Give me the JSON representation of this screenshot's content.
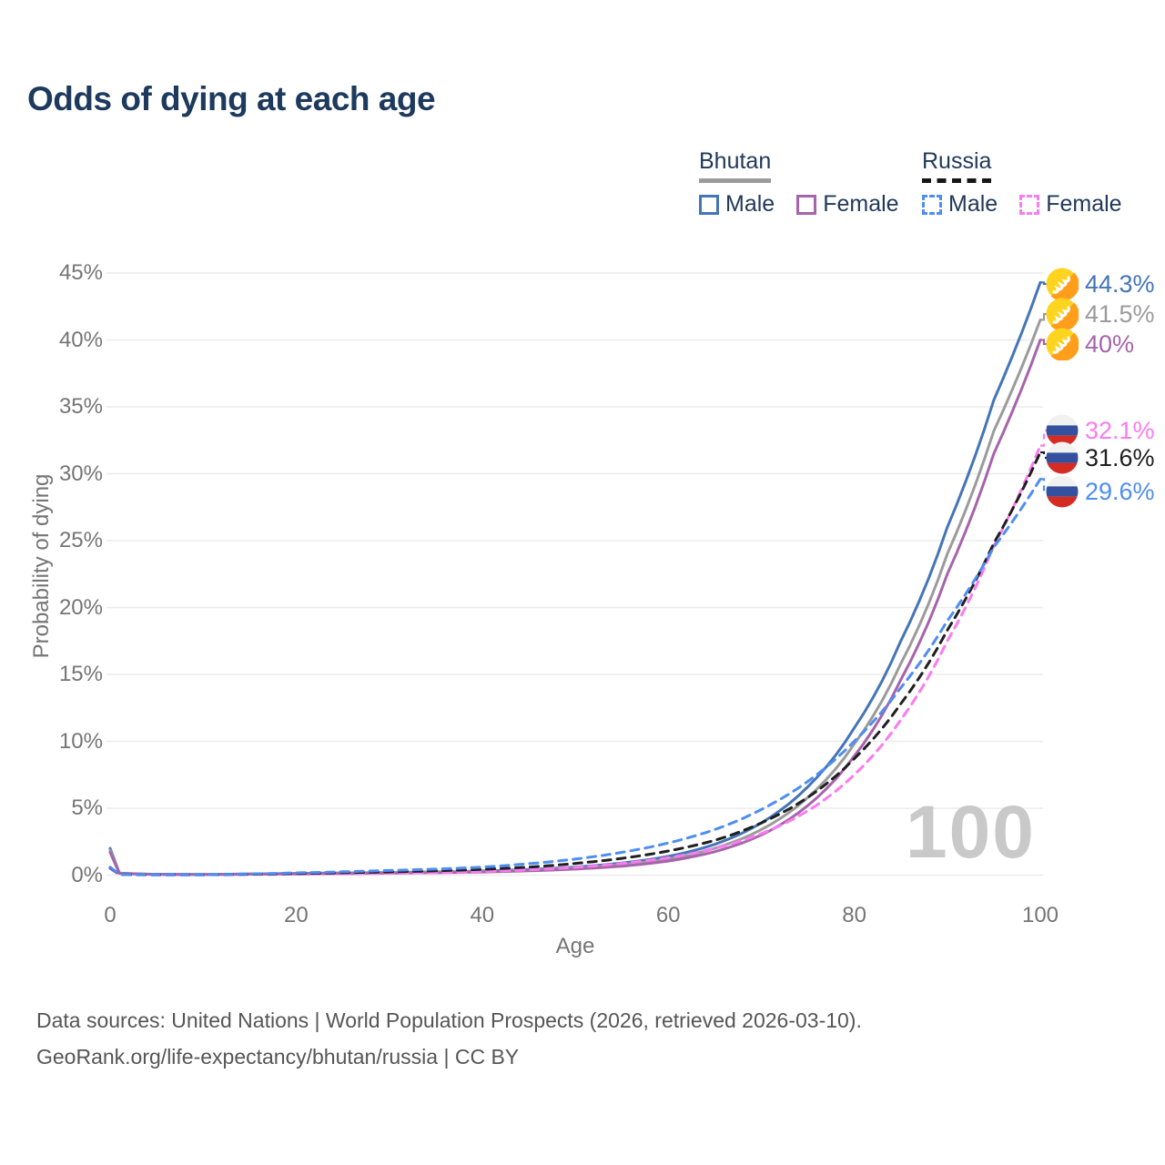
{
  "title": "Odds of dying at each age",
  "legend": {
    "groups": [
      {
        "label": "Bhutan",
        "line_style": "solid",
        "underline_color": "#9b9b9b",
        "items": [
          {
            "label": "Male",
            "color": "#4475b8"
          },
          {
            "label": "Female",
            "color": "#a763ab"
          }
        ]
      },
      {
        "label": "Russia",
        "line_style": "dashed",
        "underline_color": "#161616",
        "items": [
          {
            "label": "Male",
            "color": "#4e8df2"
          },
          {
            "label": "Female",
            "color": "#fb7bf0"
          }
        ]
      }
    ]
  },
  "watermark": "100",
  "footer": {
    "line1": "Data sources: United Nations | World Population Prospects (2026, retrieved 2026-03-10).",
    "line2": "GeoRank.org/life-expectancy/bhutan/russia | CC BY"
  },
  "chart_data": {
    "type": "line",
    "title": "Odds of dying at each age",
    "xlabel": "Age",
    "ylabel": "Probability of dying",
    "xlim": [
      0,
      100
    ],
    "ylim": [
      0,
      45
    ],
    "x_ticks": [
      "0",
      "20",
      "40",
      "60",
      "80",
      "100"
    ],
    "x_tick_values": [
      0,
      20,
      40,
      60,
      80,
      100
    ],
    "y_ticks": [
      "0%",
      "5%",
      "10%",
      "15%",
      "20%",
      "25%",
      "30%",
      "35%",
      "40%",
      "45%"
    ],
    "y_tick_values": [
      0,
      5,
      10,
      15,
      20,
      25,
      30,
      35,
      40,
      45
    ],
    "grid": "horizontal",
    "units": "percent probability of dying at each age",
    "ages": [
      0,
      1,
      5,
      10,
      15,
      20,
      25,
      30,
      35,
      40,
      45,
      50,
      55,
      60,
      65,
      70,
      75,
      80,
      85,
      90,
      95,
      100
    ],
    "series": [
      {
        "name": "Bhutan Male",
        "country": "Bhutan",
        "sex": "Male",
        "flag": "bhutan",
        "color": "#4475b8",
        "line_style": "solid",
        "end_label": "44.3%",
        "end_value": 44.3,
        "values": [
          2.0,
          0.15,
          0.06,
          0.05,
          0.09,
          0.13,
          0.16,
          0.19,
          0.24,
          0.31,
          0.42,
          0.6,
          0.9,
          1.4,
          2.3,
          3.9,
          6.6,
          11.0,
          17.5,
          26.0,
          35.5,
          44.3
        ]
      },
      {
        "name": "Bhutan",
        "country": "Bhutan",
        "sex": "Both",
        "flag": "bhutan",
        "color": "#9b9b9b",
        "line_style": "solid",
        "end_label": "41.5%",
        "end_value": 41.5,
        "values": [
          1.85,
          0.14,
          0.055,
          0.045,
          0.08,
          0.11,
          0.14,
          0.17,
          0.21,
          0.27,
          0.37,
          0.52,
          0.78,
          1.2,
          2.0,
          3.4,
          5.8,
          9.8,
          15.8,
          24.0,
          33.2,
          41.5
        ]
      },
      {
        "name": "Bhutan Female",
        "country": "Bhutan",
        "sex": "Female",
        "flag": "bhutan",
        "color": "#a763ab",
        "line_style": "solid",
        "end_label": "40%",
        "end_value": 40,
        "values": [
          1.7,
          0.13,
          0.05,
          0.04,
          0.07,
          0.09,
          0.12,
          0.15,
          0.18,
          0.23,
          0.32,
          0.45,
          0.67,
          1.05,
          1.75,
          3.0,
          5.2,
          8.9,
          14.6,
          22.5,
          31.5,
          40.0
        ]
      },
      {
        "name": "Russia Female",
        "country": "Russia",
        "sex": "Female",
        "flag": "russia",
        "color": "#fb7bf0",
        "line_style": "dashed",
        "end_label": "32.1%",
        "end_value": 32.1,
        "values": [
          0.5,
          0.04,
          0.02,
          0.02,
          0.05,
          0.07,
          0.1,
          0.14,
          0.19,
          0.27,
          0.4,
          0.58,
          0.87,
          1.3,
          2.0,
          3.1,
          4.8,
          7.5,
          11.6,
          17.5,
          24.6,
          32.1
        ]
      },
      {
        "name": "Russia",
        "country": "Russia",
        "sex": "Both",
        "flag": "russia",
        "color": "#1f1f1f",
        "line_style": "dashed",
        "end_label": "31.6%",
        "end_value": 31.6,
        "values": [
          0.55,
          0.045,
          0.025,
          0.025,
          0.07,
          0.12,
          0.18,
          0.24,
          0.32,
          0.43,
          0.6,
          0.87,
          1.25,
          1.8,
          2.6,
          3.9,
          5.8,
          8.7,
          12.8,
          18.3,
          24.8,
          31.6
        ]
      },
      {
        "name": "Russia Male",
        "country": "Russia",
        "sex": "Male",
        "flag": "russia",
        "color": "#4e8df2",
        "line_style": "dashed",
        "end_label": "29.6%",
        "end_value": 29.6,
        "values": [
          0.6,
          0.05,
          0.03,
          0.03,
          0.09,
          0.17,
          0.25,
          0.35,
          0.45,
          0.6,
          0.85,
          1.2,
          1.7,
          2.4,
          3.4,
          4.9,
          7.0,
          10.0,
          14.0,
          19.0,
          24.5,
          29.6
        ]
      }
    ]
  }
}
